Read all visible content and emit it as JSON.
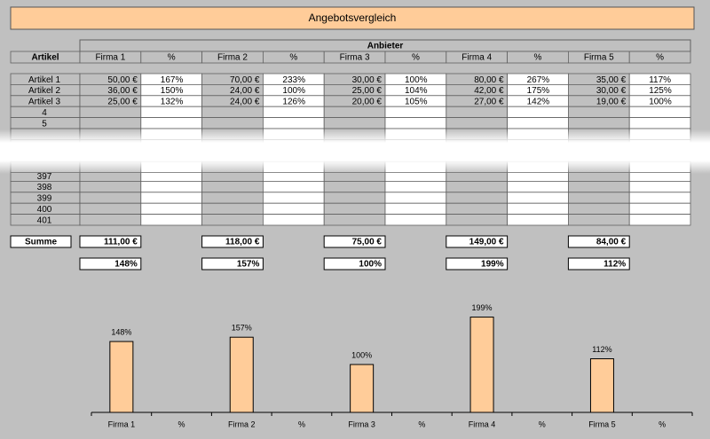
{
  "header": {
    "title": "Angebotsvergleich"
  },
  "table": {
    "group_header": "Anbieter",
    "columns": [
      "Artikel",
      "Firma 1",
      "%",
      "Firma 2",
      "%",
      "Firma 3",
      "%",
      "Firma 4",
      "%",
      "Firma 5",
      "%"
    ],
    "rows": [
      [
        "Artikel 1",
        "50,00 €",
        {
          "text": "167%",
          "color": "#ff0000"
        },
        "70,00 €",
        {
          "text": "233%",
          "color": "#ff0000"
        },
        "30,00 €",
        {
          "text": "100%",
          "color": "#008000"
        },
        "80,00 €",
        {
          "text": "267%",
          "color": "#ff0000"
        },
        "35,00 €",
        {
          "text": "117%",
          "color": "#ff0000"
        }
      ],
      [
        "Artikel 2",
        "36,00 €",
        {
          "text": "150%",
          "color": "#ff0000"
        },
        "24,00 €",
        {
          "text": "100%",
          "color": "#008000"
        },
        "25,00 €",
        {
          "text": "104%",
          "color": "#ff0000"
        },
        "42,00 €",
        {
          "text": "175%",
          "color": "#ff0000"
        },
        "30,00 €",
        {
          "text": "125%",
          "color": "#ff0000"
        }
      ],
      [
        "Artikel 3",
        "25,00 €",
        {
          "text": "132%",
          "color": "#ff0000"
        },
        "24,00 €",
        {
          "text": "126%",
          "color": "#ff0000"
        },
        "20,00 €",
        {
          "text": "105%",
          "color": "#ff0000"
        },
        "27,00 €",
        {
          "text": "142%",
          "color": "#ff0000"
        },
        "19,00 €",
        {
          "text": "100%",
          "color": "#008000"
        }
      ],
      [
        "4"
      ],
      [
        "5"
      ],
      [
        "397"
      ],
      [
        "398"
      ],
      [
        "399"
      ],
      [
        "400"
      ],
      [
        "401"
      ]
    ],
    "totals": {
      "label": "Summe",
      "sums": [
        {
          "text": "111,00 €",
          "color": "#ff0000"
        },
        {
          "text": "118,00 €",
          "color": "#ff0000"
        },
        {
          "text": "75,00 €",
          "color": "#008000"
        },
        {
          "text": "149,00 €",
          "color": "#ff0000"
        },
        {
          "text": "84,00 €",
          "color": "#ff0000"
        }
      ],
      "percents": [
        {
          "text": "148%",
          "color": "#ff0000"
        },
        {
          "text": "157%",
          "color": "#ff0000"
        },
        {
          "text": "100%",
          "color": "#008000"
        },
        {
          "text": "199%",
          "color": "#ff0000"
        },
        {
          "text": "112%",
          "color": "#ff0000"
        }
      ]
    }
  },
  "chart_data": {
    "type": "bar",
    "categories": [
      "Firma 1",
      "%",
      "Firma 2",
      "%",
      "Firma 3",
      "%",
      "Firma 4",
      "%",
      "Firma 5",
      "%"
    ],
    "values": [
      148,
      null,
      157,
      null,
      100,
      null,
      199,
      null,
      112,
      null
    ],
    "value_labels": [
      "148%",
      null,
      "157%",
      null,
      "100%",
      null,
      "199%",
      null,
      "112%",
      null
    ],
    "color": "#ffcc99"
  }
}
